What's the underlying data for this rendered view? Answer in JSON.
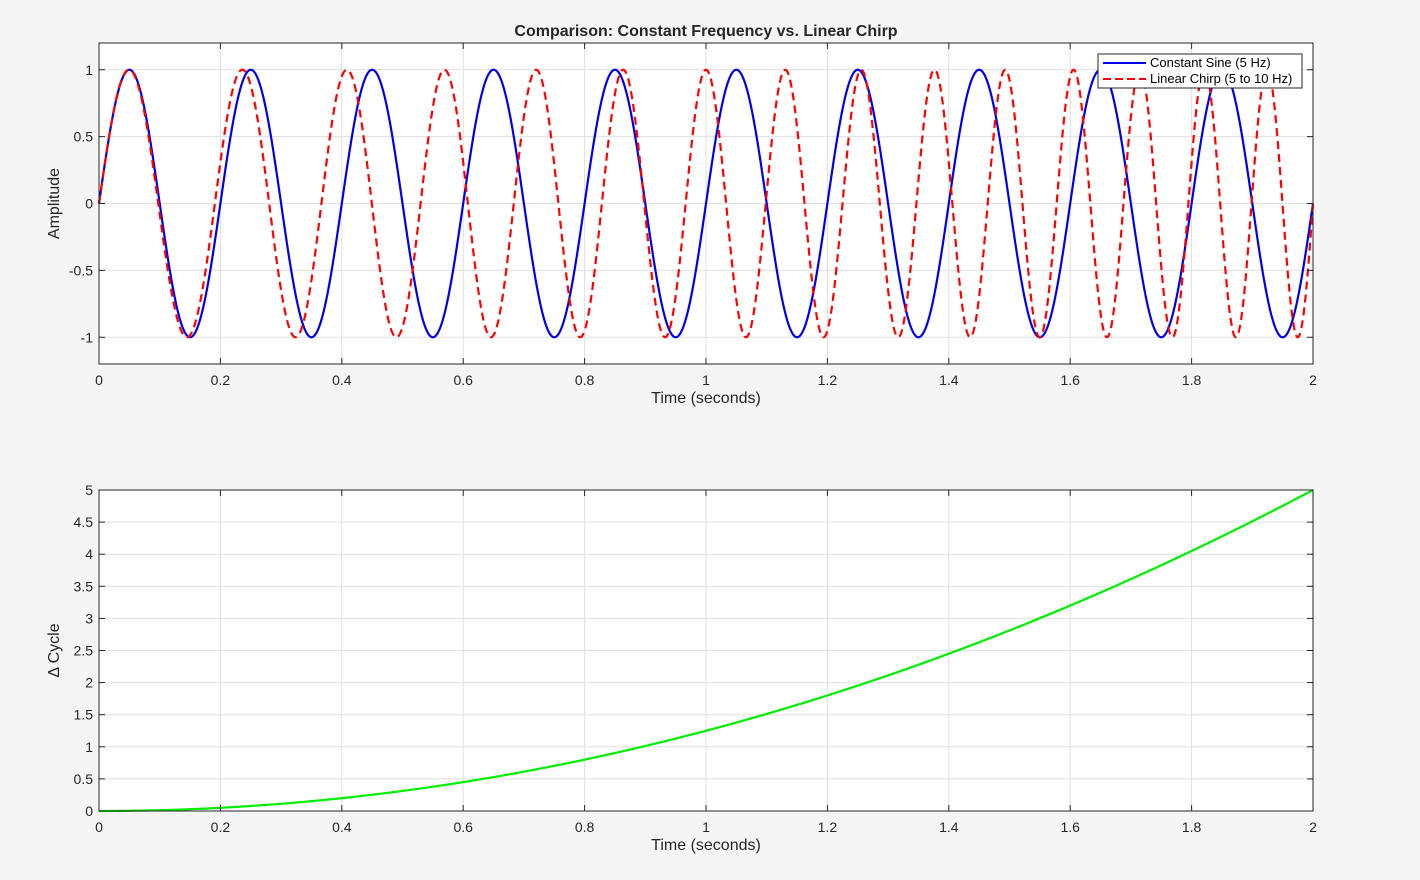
{
  "chart_data": [
    {
      "type": "line",
      "title": "Comparison: Constant Frequency vs. Linear Chirp",
      "xlabel": "Time (seconds)",
      "ylabel": "Amplitude",
      "xlim": [
        0,
        2
      ],
      "ylim": [
        -1.2,
        1.2
      ],
      "xticks": [
        0,
        0.2,
        0.4,
        0.6,
        0.8,
        1,
        1.2,
        1.4,
        1.6,
        1.8,
        2
      ],
      "xtick_labels": [
        "0",
        "0.2",
        "0.4",
        "0.6",
        "0.8",
        "1",
        "1.2",
        "1.4",
        "1.6",
        "1.8",
        "2"
      ],
      "yticks": [
        -1,
        -0.5,
        0,
        0.5,
        1
      ],
      "ytick_labels": [
        "-1",
        "-0.5",
        "0",
        "0.5",
        "1"
      ],
      "grid": true,
      "legend_position": "top-right",
      "series": [
        {
          "name": "Constant Sine (5 Hz)",
          "color": "#0000ee",
          "style": "solid",
          "function": "sin(2*pi*5*t)",
          "samples": [
            [
              0,
              0
            ],
            [
              0.05,
              1
            ],
            [
              0.1,
              0
            ],
            [
              0.15,
              -1
            ],
            [
              0.2,
              0
            ],
            [
              0.25,
              1
            ],
            [
              0.3,
              0
            ],
            [
              0.35,
              -1
            ],
            [
              0.4,
              0
            ],
            [
              0.45,
              1
            ],
            [
              0.5,
              0
            ],
            [
              0.55,
              -1
            ],
            [
              0.6,
              0
            ],
            [
              0.65,
              1
            ],
            [
              0.7,
              0
            ],
            [
              0.75,
              -1
            ],
            [
              0.8,
              0
            ],
            [
              0.85,
              1
            ],
            [
              0.9,
              0
            ],
            [
              0.95,
              -1
            ],
            [
              1,
              0
            ],
            [
              1.05,
              1
            ],
            [
              1.1,
              0
            ],
            [
              1.15,
              -1
            ],
            [
              1.2,
              0
            ],
            [
              1.25,
              1
            ],
            [
              1.3,
              0
            ],
            [
              1.35,
              -1
            ],
            [
              1.4,
              0
            ],
            [
              1.45,
              1
            ],
            [
              1.5,
              0
            ],
            [
              1.55,
              -1
            ],
            [
              1.6,
              0
            ],
            [
              1.65,
              1
            ],
            [
              1.7,
              0
            ],
            [
              1.75,
              -1
            ],
            [
              1.8,
              0
            ],
            [
              1.85,
              1
            ],
            [
              1.9,
              0
            ],
            [
              1.95,
              -1
            ],
            [
              2,
              0
            ]
          ]
        },
        {
          "name": "Linear Chirp (5 to 10 Hz)",
          "color": "#ff0000",
          "style": "dashed",
          "function": "sin(2*pi*(5*t + 1.25*t^2))",
          "samples": [
            [
              0,
              0
            ],
            [
              0.05,
              1
            ],
            [
              0.15,
              -1
            ],
            [
              0.24,
              1
            ],
            [
              0.33,
              -1
            ],
            [
              0.41,
              1
            ],
            [
              0.49,
              -1
            ],
            [
              0.57,
              1
            ],
            [
              0.65,
              -1
            ],
            [
              0.72,
              1
            ],
            [
              0.79,
              -1
            ],
            [
              0.86,
              1
            ],
            [
              0.93,
              -1
            ],
            [
              1,
              1
            ],
            [
              1.07,
              -1
            ],
            [
              1.13,
              1
            ],
            [
              1.2,
              -1
            ],
            [
              1.26,
              1
            ],
            [
              1.32,
              -1
            ],
            [
              1.38,
              1
            ],
            [
              1.44,
              -1
            ],
            [
              1.5,
              1
            ],
            [
              1.55,
              -1
            ],
            [
              1.61,
              1
            ],
            [
              1.66,
              -1
            ],
            [
              1.72,
              1
            ],
            [
              1.77,
              -1
            ],
            [
              1.82,
              1
            ],
            [
              1.87,
              -1
            ],
            [
              1.93,
              1
            ],
            [
              1.98,
              -1
            ],
            [
              2,
              0
            ]
          ]
        }
      ]
    },
    {
      "type": "line",
      "title": "",
      "xlabel": "Time (seconds)",
      "ylabel": "Δ  Cycle",
      "xlim": [
        0,
        2
      ],
      "ylim": [
        0,
        5
      ],
      "xticks": [
        0,
        0.2,
        0.4,
        0.6,
        0.8,
        1,
        1.2,
        1.4,
        1.6,
        1.8,
        2
      ],
      "xtick_labels": [
        "0",
        "0.2",
        "0.4",
        "0.6",
        "0.8",
        "1",
        "1.2",
        "1.4",
        "1.6",
        "1.8",
        "2"
      ],
      "yticks": [
        0,
        0.5,
        1,
        1.5,
        2,
        2.5,
        3,
        3.5,
        4,
        4.5,
        5
      ],
      "ytick_labels": [
        "0",
        "0.5",
        "1",
        "1.5",
        "2",
        "2.5",
        "3",
        "3.5",
        "4",
        "4.5",
        "5"
      ],
      "grid": true,
      "series": [
        {
          "color": "#00ee00",
          "style": "solid",
          "function": "1.25*t^2",
          "x": [
            0,
            0.2,
            0.4,
            0.6,
            0.8,
            1,
            1.2,
            1.4,
            1.6,
            1.8,
            2
          ],
          "y": [
            0,
            0.05,
            0.2,
            0.45,
            0.8,
            1.25,
            1.8,
            2.45,
            3.2,
            4.05,
            5
          ]
        }
      ]
    }
  ]
}
